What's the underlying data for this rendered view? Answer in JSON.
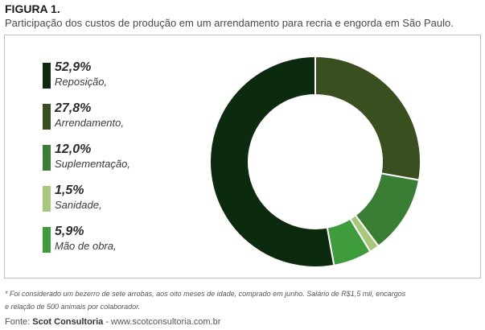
{
  "figure": {
    "title": "FIGURA 1.",
    "subtitle": "Participação dos custos de produção em um arrendamento para recria e engorda em São Paulo."
  },
  "chart_data": {
    "type": "pie",
    "variant": "donut",
    "title": "",
    "legend_position": "left",
    "categories": [
      "Reposição,",
      "Arrendamento,",
      "Suplementação,",
      "Sanidade,",
      "Mão de obra,"
    ],
    "values": [
      52.9,
      27.8,
      12.0,
      1.5,
      5.9
    ],
    "value_labels": [
      "52,9%",
      "27,8%",
      "12,0%",
      "1,5%",
      "5,9%"
    ],
    "colors": [
      "#0c2a0e",
      "#394f1f",
      "#3a7d34",
      "#a8c77a",
      "#3f9c3c"
    ]
  },
  "footnote": {
    "line1": "* Foi considerado um bezerro de sete arrobas, aos oito meses de idade, comprado em junho. Salário de R$1,5 mil, encargos",
    "line2": "e relação de 500 animais por colaborador."
  },
  "source": {
    "prefix": "Fonte: ",
    "name": "Scot Consultoria",
    "suffix": " - www.scotconsultoria.com.br"
  }
}
